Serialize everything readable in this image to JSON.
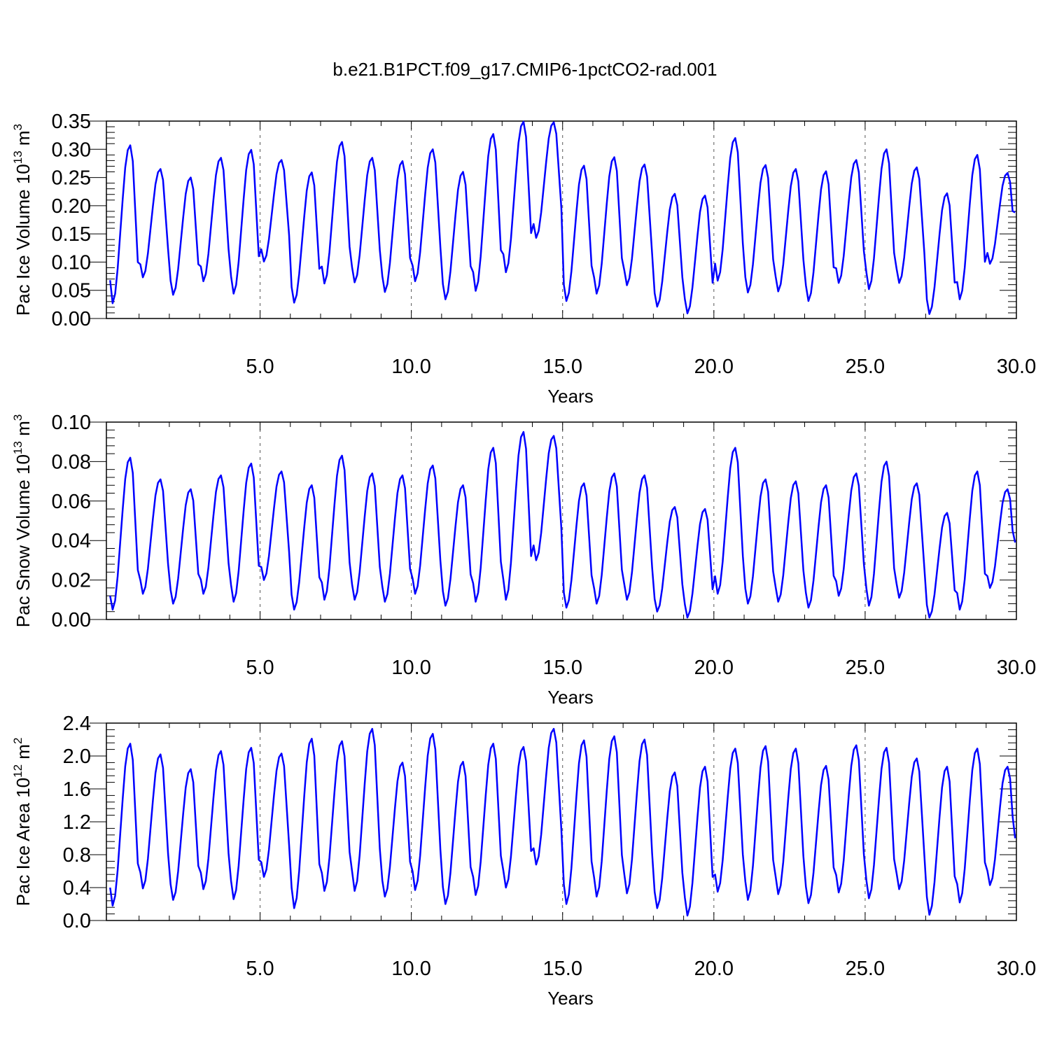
{
  "figure": {
    "title": "b.e21.B1PCT.f09_g17.CMIP6-1pctCO2-rad.001"
  },
  "colors": {
    "series": "#0000ff",
    "axis": "#000000",
    "grid": "#555555"
  },
  "chart_data": [
    {
      "type": "line",
      "id": "ice-volume",
      "ylabel_main": "Pac Ice Volume 10",
      "ylabel_exp": "13",
      "ylabel_unit": " m",
      "ylabel_unit_exp": "3",
      "xlabel": "Years",
      "xlim": [
        -0.08,
        30.0
      ],
      "ylim": [
        0.0,
        0.35
      ],
      "xticks": [
        5,
        10,
        15,
        20,
        25,
        30
      ],
      "xtick_labels": [
        "5.0",
        "10.0",
        "15.0",
        "20.0",
        "25.0",
        "30.0"
      ],
      "yticks": [
        0.0,
        0.05,
        0.1,
        0.15,
        0.2,
        0.25,
        0.3,
        0.35
      ],
      "ytick_labels": [
        "0.00",
        "0.05",
        "0.10",
        "0.15",
        "0.20",
        "0.25",
        "0.30",
        "0.35"
      ],
      "grid_x": [
        5,
        10,
        15,
        20,
        25
      ],
      "series": [
        {
          "annual_max": [
            0.307,
            0.265,
            0.25,
            0.285,
            0.299,
            0.281,
            0.259,
            0.313,
            0.285,
            0.279,
            0.3,
            0.26,
            0.327,
            0.349,
            0.348,
            0.271,
            0.286,
            0.273,
            0.221,
            0.218,
            0.32,
            0.272,
            0.265,
            0.261,
            0.281,
            0.3,
            0.268,
            0.222,
            0.29,
            0.258
          ],
          "annual_min": [
            0.027,
            0.073,
            0.042,
            0.066,
            0.044,
            0.101,
            0.028,
            0.062,
            0.064,
            0.047,
            0.066,
            0.034,
            0.049,
            0.082,
            0.143,
            0.031,
            0.044,
            0.059,
            0.021,
            0.009,
            0.067,
            0.046,
            0.048,
            0.031,
            0.063,
            0.052,
            0.063,
            0.008,
            0.034,
            0.097
          ],
          "first": 0.068,
          "last": 0.188
        }
      ]
    },
    {
      "type": "line",
      "id": "snow-volume",
      "ylabel_main": "Pac Snow Volume 10",
      "ylabel_exp": "13",
      "ylabel_unit": " m",
      "ylabel_unit_exp": "3",
      "xlabel": "Years",
      "xlim": [
        -0.08,
        30.0
      ],
      "ylim": [
        0.0,
        0.1
      ],
      "xticks": [
        5,
        10,
        15,
        20,
        25,
        30
      ],
      "xtick_labels": [
        "5.0",
        "10.0",
        "15.0",
        "20.0",
        "25.0",
        "30.0"
      ],
      "yticks": [
        0.0,
        0.02,
        0.04,
        0.06,
        0.08,
        0.1
      ],
      "ytick_labels": [
        "0.00",
        "0.02",
        "0.04",
        "0.06",
        "0.08",
        "0.10"
      ],
      "grid_x": [
        5,
        10,
        15,
        20,
        25
      ],
      "series": [
        {
          "annual_max": [
            0.082,
            0.071,
            0.066,
            0.073,
            0.079,
            0.075,
            0.068,
            0.083,
            0.074,
            0.073,
            0.078,
            0.068,
            0.087,
            0.095,
            0.093,
            0.069,
            0.074,
            0.073,
            0.057,
            0.056,
            0.087,
            0.071,
            0.07,
            0.068,
            0.074,
            0.08,
            0.069,
            0.054,
            0.075,
            0.066
          ],
          "annual_min": [
            0.005,
            0.013,
            0.008,
            0.013,
            0.009,
            0.02,
            0.005,
            0.01,
            0.01,
            0.009,
            0.013,
            0.007,
            0.009,
            0.01,
            0.03,
            0.006,
            0.008,
            0.01,
            0.004,
            0.001,
            0.013,
            0.008,
            0.009,
            0.006,
            0.012,
            0.007,
            0.011,
            0.001,
            0.005,
            0.016
          ],
          "first": 0.012,
          "last": 0.039
        }
      ]
    },
    {
      "type": "line",
      "id": "ice-area",
      "ylabel_main": "Pac Ice Area 10",
      "ylabel_exp": "12",
      "ylabel_unit": " m",
      "ylabel_unit_exp": "2",
      "xlabel": "Years",
      "xlim": [
        -0.08,
        30.0
      ],
      "ylim": [
        0.0,
        2.4
      ],
      "xticks": [
        5,
        10,
        15,
        20,
        25,
        30
      ],
      "xtick_labels": [
        "5.0",
        "10.0",
        "15.0",
        "20.0",
        "25.0",
        "30.0"
      ],
      "yticks": [
        0.0,
        0.4,
        0.8,
        1.2,
        1.6,
        2.0,
        2.4
      ],
      "ytick_labels": [
        "0.0",
        "0.4",
        "0.8",
        "1.2",
        "1.6",
        "2.0",
        "2.4"
      ],
      "grid_x": [
        5,
        10,
        15,
        20,
        25
      ],
      "series": [
        {
          "annual_max": [
            2.15,
            2.02,
            1.84,
            2.06,
            2.1,
            2.03,
            2.21,
            2.18,
            2.33,
            1.92,
            2.27,
            1.93,
            2.15,
            2.11,
            2.33,
            2.19,
            2.24,
            2.2,
            1.8,
            1.87,
            2.09,
            2.12,
            2.09,
            1.88,
            2.13,
            2.1,
            1.97,
            1.87,
            2.09,
            1.87
          ],
          "annual_min": [
            0.18,
            0.39,
            0.25,
            0.38,
            0.26,
            0.53,
            0.15,
            0.36,
            0.36,
            0.29,
            0.37,
            0.2,
            0.31,
            0.4,
            0.68,
            0.2,
            0.29,
            0.33,
            0.15,
            0.06,
            0.35,
            0.25,
            0.32,
            0.21,
            0.34,
            0.27,
            0.38,
            0.07,
            0.22,
            0.43
          ],
          "first": 0.4,
          "last": 1.0
        }
      ]
    }
  ]
}
